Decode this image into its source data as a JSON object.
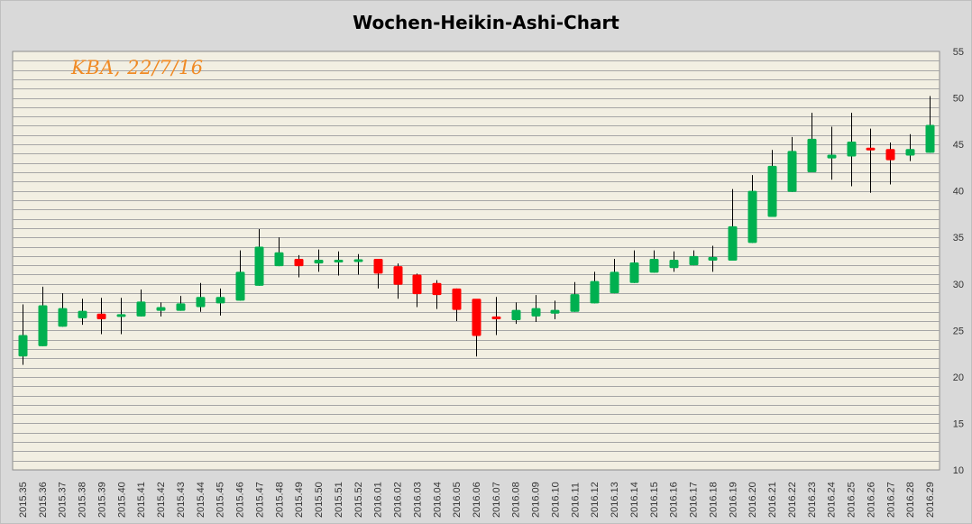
{
  "chart_data": {
    "type": "candlestick",
    "title": "Wochen-Heikin-Ashi-Chart",
    "annotation": "KBA, 22/7/16",
    "y_ticks": [
      10,
      15,
      20,
      25,
      30,
      35,
      40,
      45,
      50,
      55
    ],
    "ylim": [
      10,
      55
    ],
    "y_axis_side": "right",
    "grid_step": 1,
    "colors": {
      "up": "#00b050",
      "down": "#ff0000",
      "wick": "#000000",
      "plot_bg": "#f2efe2",
      "grid": "#a6a6a6"
    },
    "categories": [
      "2015.35",
      "2015.36",
      "2015.37",
      "2015.38",
      "2015.39",
      "2015.40",
      "2015.41",
      "2015.42",
      "2015.43",
      "2015.44",
      "2015.45",
      "2015.46",
      "2015.47",
      "2015.48",
      "2015.49",
      "2015.50",
      "2015.51",
      "2015.52",
      "2016.01",
      "2016.02",
      "2016.03",
      "2016.04",
      "2016.05",
      "2016.06",
      "2016.07",
      "2016.08",
      "2016.09",
      "2016.10",
      "2016.11",
      "2016.12",
      "2016.13",
      "2016.14",
      "2016.15",
      "2016.16",
      "2016.17",
      "2016.18",
      "2016.19",
      "2016.20",
      "2016.21",
      "2016.22",
      "2016.23",
      "2016.24",
      "2016.25",
      "2016.26",
      "2016.27",
      "2016.28",
      "2016.29"
    ],
    "open": [
      22.2,
      23.3,
      25.4,
      26.3,
      26.8,
      26.5,
      26.5,
      27.1,
      27.1,
      27.5,
      27.9,
      28.2,
      29.8,
      31.9,
      32.7,
      32.2,
      32.3,
      32.4,
      32.7,
      31.9,
      31.0,
      30.1,
      29.5,
      28.4,
      26.5,
      26.1,
      26.5,
      26.8,
      27.0,
      27.9,
      29.0,
      30.1,
      31.2,
      31.7,
      32.0,
      32.5,
      32.5,
      34.4,
      37.2,
      39.9,
      42.0,
      43.5,
      43.7,
      44.6,
      44.5,
      43.8,
      44.1
    ],
    "close": [
      24.5,
      27.7,
      27.4,
      27.1,
      26.2,
      26.7,
      28.1,
      27.5,
      27.9,
      28.6,
      28.6,
      31.3,
      34.0,
      33.4,
      31.9,
      32.6,
      32.6,
      32.6,
      31.1,
      29.9,
      28.9,
      28.8,
      27.2,
      24.4,
      26.2,
      27.2,
      27.4,
      27.2,
      28.9,
      30.3,
      31.3,
      32.3,
      32.7,
      32.6,
      33.0,
      32.9,
      36.2,
      40.0,
      42.7,
      44.3,
      45.6,
      43.9,
      45.3,
      44.4,
      43.3,
      44.5,
      47.1
    ],
    "high": [
      27.8,
      29.7,
      29.0,
      28.4,
      28.5,
      28.5,
      29.4,
      28.0,
      28.7,
      30.1,
      29.5,
      33.6,
      35.9,
      35.0,
      33.1,
      33.7,
      33.5,
      33.2,
      32.5,
      32.2,
      31.1,
      30.4,
      29.5,
      28.2,
      28.6,
      28.0,
      28.8,
      28.2,
      30.2,
      31.3,
      32.7,
      33.6,
      33.6,
      33.5,
      33.6,
      34.1,
      40.2,
      41.7,
      44.4,
      45.8,
      48.4,
      46.9,
      48.4,
      46.7,
      45.2,
      46.1,
      50.2
    ],
    "low": [
      21.3,
      23.3,
      25.4,
      25.6,
      24.6,
      24.6,
      26.5,
      26.5,
      27.1,
      27.0,
      26.6,
      28.2,
      29.8,
      31.9,
      30.7,
      31.3,
      30.9,
      31.0,
      29.5,
      28.4,
      27.5,
      27.3,
      26.0,
      22.2,
      24.5,
      25.7,
      25.9,
      26.2,
      27.0,
      27.9,
      29.0,
      30.1,
      31.2,
      31.3,
      32.0,
      31.3,
      32.5,
      34.4,
      37.2,
      39.9,
      42.0,
      41.2,
      40.5,
      39.8,
      40.7,
      43.2,
      44.1
    ]
  }
}
